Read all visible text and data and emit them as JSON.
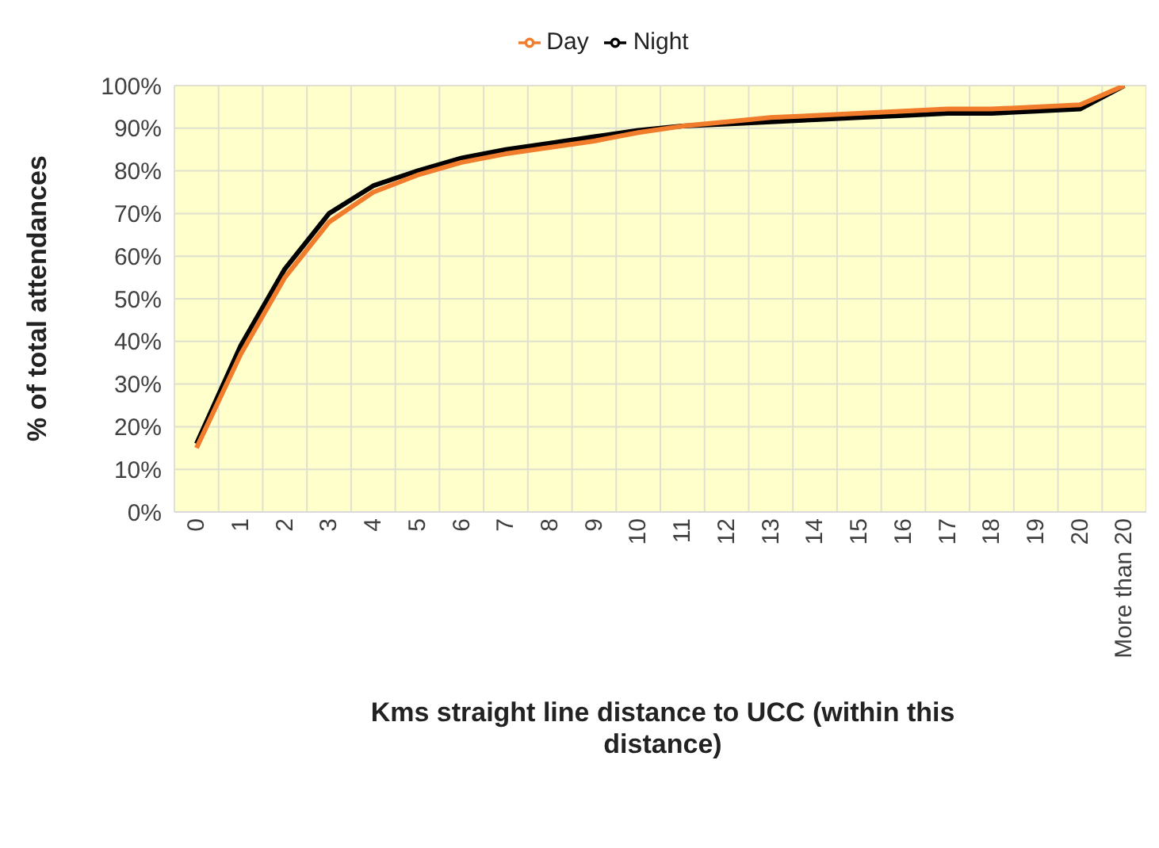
{
  "chart_data": {
    "type": "line",
    "xlabel": "Kms straight line distance to UCC (within this distance)",
    "ylabel": "% of total attendances",
    "categories": [
      "0",
      "1",
      "2",
      "3",
      "4",
      "5",
      "6",
      "7",
      "8",
      "9",
      "10",
      "11",
      "12",
      "13",
      "14",
      "15",
      "16",
      "17",
      "18",
      "19",
      "20",
      "More than 20"
    ],
    "series": [
      {
        "name": "Night",
        "color": "#000000",
        "values": [
          16,
          39,
          57,
          70,
          76.5,
          80,
          83,
          85,
          86.5,
          88,
          89.5,
          90.5,
          91,
          91.5,
          92,
          92.5,
          93,
          93.5,
          93.5,
          94,
          94.5,
          100
        ]
      },
      {
        "name": "Day",
        "color": "#f07c2c",
        "values": [
          15,
          37,
          55,
          68,
          75,
          79,
          82,
          84,
          85.5,
          87,
          89,
          90.5,
          91.5,
          92.5,
          93,
          93.5,
          94,
          94.5,
          94.5,
          95,
          95.5,
          100
        ]
      }
    ],
    "ylim": [
      0,
      100
    ],
    "yticks": [
      {
        "value": 0,
        "label": "0%"
      },
      {
        "value": 10,
        "label": "10%"
      },
      {
        "value": 20,
        "label": "20%"
      },
      {
        "value": 30,
        "label": "30%"
      },
      {
        "value": 40,
        "label": "40%"
      },
      {
        "value": 50,
        "label": "50%"
      },
      {
        "value": 60,
        "label": "60%"
      },
      {
        "value": 70,
        "label": "70%"
      },
      {
        "value": 80,
        "label": "80%"
      },
      {
        "value": 90,
        "label": "90%"
      },
      {
        "value": 100,
        "label": "100%"
      }
    ],
    "grid": true,
    "legend": "top",
    "marker": "none",
    "line_style": "solid"
  }
}
